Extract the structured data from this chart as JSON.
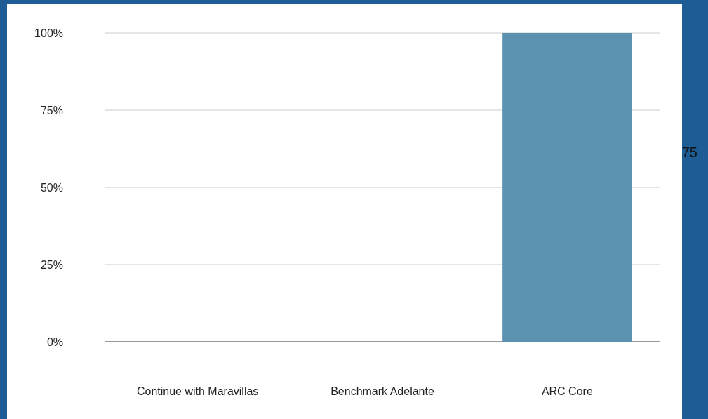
{
  "chart_data": {
    "type": "bar",
    "categories": [
      "Continue with Maravillas",
      "Benchmark Adelante",
      "ARC Core"
    ],
    "values": [
      0,
      0,
      100
    ],
    "color": "#5b92af",
    "ylim": [
      0,
      100
    ],
    "yticks": [
      {
        "value": 0,
        "label": "0%"
      },
      {
        "value": 25,
        "label": "25%"
      },
      {
        "value": 50,
        "label": "50%"
      },
      {
        "value": 75,
        "label": "75%"
      },
      {
        "value": 100,
        "label": "100%"
      }
    ],
    "grid": "y",
    "annotations": [
      "75"
    ]
  }
}
